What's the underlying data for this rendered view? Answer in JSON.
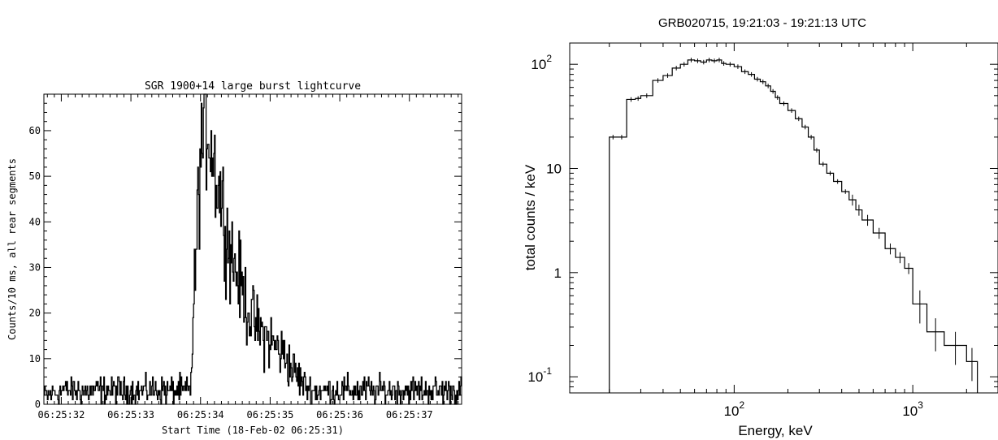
{
  "chart_data": [
    {
      "type": "line",
      "title": "SGR 1900+14 large burst lightcurve",
      "xlabel": "Start Time (18-Feb-02 06:25:31)",
      "ylabel": "Counts/10 ms, all rear segments",
      "x_tick_labels": [
        "06:25:32",
        "06:25:33",
        "06:25:34",
        "06:25:35",
        "06:25:36",
        "06:25:37"
      ],
      "y_tick_labels": [
        "0",
        "10",
        "20",
        "30",
        "40",
        "50",
        "60"
      ],
      "xlim": [
        0.75,
        6.75
      ],
      "ylim": [
        0,
        68
      ],
      "x_unit": "seconds since 06:25:31",
      "bin_width": 0.01,
      "series": [
        {
          "x": [
            0.75,
            1.0,
            1.5,
            2.0,
            2.5,
            2.85,
            2.95,
            3.0,
            3.05,
            3.1,
            3.15,
            3.2,
            3.25,
            3.3,
            3.4,
            3.5,
            3.6,
            3.7,
            3.8,
            3.9,
            4.0,
            4.1,
            4.2,
            4.3,
            4.4,
            4.5,
            4.6,
            4.8,
            5.0,
            5.5,
            6.0,
            6.5,
            6.75
          ],
          "y": [
            2,
            3,
            3,
            3,
            3,
            3,
            40,
            55,
            60,
            62,
            57,
            52,
            48,
            45,
            35,
            30,
            25,
            20,
            17,
            15,
            14,
            12,
            11,
            8,
            6,
            4,
            3,
            3,
            3,
            3,
            3,
            3,
            3
          ]
        }
      ]
    },
    {
      "type": "line",
      "title": "GRB020715,  19:21:03 - 19:21:13 UTC",
      "xlabel": "Energy, keV",
      "ylabel": "total counts / keV",
      "x_tick_labels": [
        {
          "base": "10",
          "exp": "2"
        },
        {
          "base": "10",
          "exp": "3"
        }
      ],
      "y_tick_labels": [
        {
          "base": "10",
          "exp": "2"
        },
        {
          "base": "10",
          "exp": ""
        },
        {
          "base": "1",
          "exp": ""
        },
        {
          "base": "10",
          "exp": "-1"
        }
      ],
      "x_scale": "log",
      "y_scale": "log",
      "xlim": [
        12,
        3000
      ],
      "ylim": [
        0.07,
        160
      ],
      "series": [
        {
          "x": [
            20,
            22,
            25,
            28,
            30,
            35,
            40,
            45,
            50,
            55,
            60,
            65,
            70,
            75,
            80,
            85,
            90,
            100,
            110,
            120,
            130,
            140,
            150,
            160,
            170,
            180,
            200,
            220,
            240,
            260,
            280,
            300,
            330,
            360,
            400,
            440,
            480,
            520,
            600,
            700,
            800,
            900,
            1000,
            1200,
            1500,
            2000,
            2300
          ],
          "y": [
            20,
            20,
            46,
            47,
            50,
            70,
            78,
            92,
            100,
            110,
            108,
            105,
            110,
            108,
            110,
            102,
            100,
            95,
            85,
            80,
            72,
            68,
            62,
            55,
            48,
            42,
            36,
            30,
            25,
            20,
            15,
            11,
            9,
            7.5,
            6,
            5,
            4,
            3.2,
            2.4,
            1.7,
            1.4,
            1.1,
            0.5,
            0.27,
            0.2,
            0.14,
            0.14
          ]
        }
      ]
    }
  ]
}
